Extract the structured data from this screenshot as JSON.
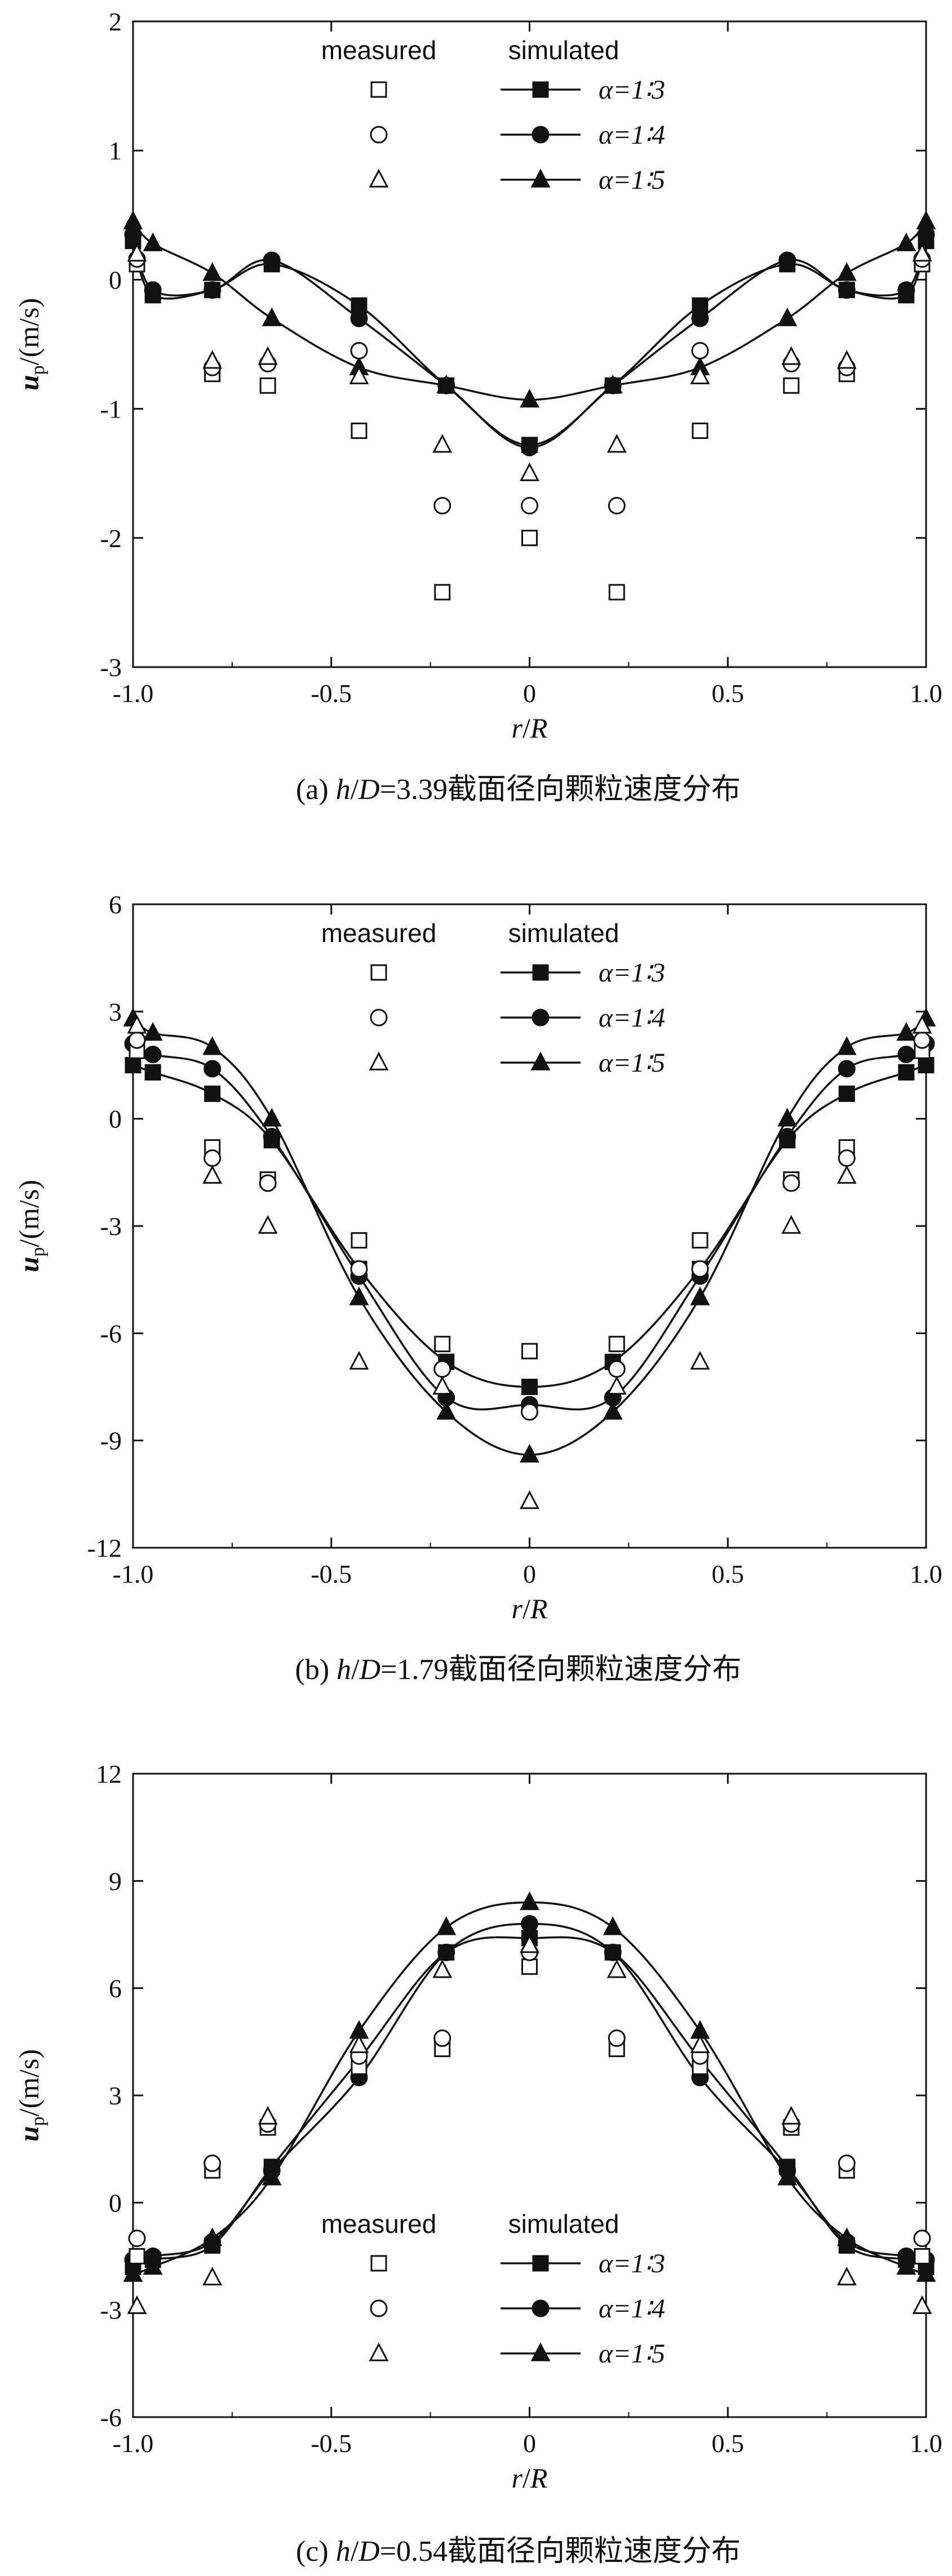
{
  "chart_data": [
    {
      "type": "line",
      "caption": {
        "prefix": "(a) ",
        "var1": "h",
        "slash": "/",
        "var2": "D",
        "value": "=3.39截面径向颗粒速度分布"
      },
      "xlabel": {
        "a": "r",
        "slash": "/",
        "b": "R"
      },
      "ylabel": {
        "main": "u",
        "sub": "p",
        "unit": "/(m/s)"
      },
      "xlim": [
        -1.0,
        1.0
      ],
      "ylim": [
        -3,
        2
      ],
      "xticks": [
        "-1.0",
        "-0.5",
        "0",
        "0.5",
        "1.0"
      ],
      "yticks": [
        "2",
        "1",
        "0",
        "-1",
        "-2",
        "-3"
      ],
      "legend": {
        "position": "top",
        "measured_label": "measured",
        "simulated_label": "simulated"
      },
      "series": [
        {
          "name": "α=1∶3",
          "legend_label": "α=1∶3",
          "measured_marker": "open-square",
          "simulated_marker": "filled-square",
          "measured": {
            "x": [
              -0.99,
              -0.8,
              -0.66,
              -0.43,
              -0.22,
              0,
              0.22,
              0.43,
              0.66,
              0.8,
              0.99
            ],
            "y": [
              0.12,
              -0.73,
              -0.82,
              -1.17,
              -2.42,
              -2.0,
              -2.42,
              -1.17,
              -0.82,
              -0.73,
              0.12
            ]
          },
          "simulated": {
            "x": [
              -1.0,
              -0.95,
              -0.8,
              -0.65,
              -0.43,
              -0.21,
              0,
              0.21,
              0.43,
              0.65,
              0.8,
              0.95,
              1.0
            ],
            "y": [
              0.3,
              -0.12,
              -0.08,
              0.12,
              -0.2,
              -0.82,
              -1.28,
              -0.82,
              -0.2,
              0.12,
              -0.08,
              -0.12,
              0.3
            ]
          }
        },
        {
          "name": "α=1∶4",
          "legend_label": "α=1∶4",
          "measured_marker": "open-circle",
          "simulated_marker": "filled-circle",
          "measured": {
            "x": [
              -0.99,
              -0.8,
              -0.66,
              -0.43,
              -0.22,
              0,
              0.22,
              0.43,
              0.66,
              0.8,
              0.99
            ],
            "y": [
              0.16,
              -0.68,
              -0.65,
              -0.55,
              -1.75,
              -1.75,
              -1.75,
              -0.55,
              -0.65,
              -0.68,
              0.16
            ]
          },
          "simulated": {
            "x": [
              -1.0,
              -0.95,
              -0.8,
              -0.65,
              -0.43,
              -0.21,
              0,
              0.21,
              0.43,
              0.65,
              0.8,
              0.95,
              1.0
            ],
            "y": [
              0.35,
              -0.08,
              -0.08,
              0.15,
              -0.3,
              -0.82,
              -1.3,
              -0.82,
              -0.3,
              0.15,
              -0.08,
              -0.08,
              0.35
            ]
          }
        },
        {
          "name": "α=1∶5",
          "legend_label": "α=1∶5",
          "measured_marker": "open-triangle",
          "simulated_marker": "filled-triangle",
          "measured": {
            "x": [
              -0.99,
              -0.8,
              -0.66,
              -0.43,
              -0.22,
              0,
              0.22,
              0.43,
              0.66,
              0.8,
              0.99
            ],
            "y": [
              0.2,
              -0.63,
              -0.6,
              -0.75,
              -1.28,
              -1.5,
              -1.28,
              -0.75,
              -0.6,
              -0.63,
              0.2
            ]
          },
          "simulated": {
            "x": [
              -1.0,
              -0.95,
              -0.8,
              -0.65,
              -0.43,
              -0.21,
              0,
              0.21,
              0.43,
              0.65,
              0.8,
              0.95,
              1.0
            ],
            "y": [
              0.45,
              0.28,
              0.05,
              -0.3,
              -0.68,
              -0.82,
              -0.93,
              -0.82,
              -0.68,
              -0.3,
              0.05,
              0.28,
              0.45
            ]
          }
        }
      ]
    },
    {
      "type": "line",
      "caption": {
        "prefix": "(b) ",
        "var1": "h",
        "slash": "/",
        "var2": "D",
        "value": "=1.79截面径向颗粒速度分布"
      },
      "xlabel": {
        "a": "r",
        "slash": "/",
        "b": "R"
      },
      "ylabel": {
        "main": "u",
        "sub": "p",
        "unit": "/(m/s)"
      },
      "xlim": [
        -1.0,
        1.0
      ],
      "ylim": [
        -12,
        6
      ],
      "xticks": [
        "-1.0",
        "-0.5",
        "0",
        "0.5",
        "1.0"
      ],
      "yticks": [
        "6",
        "3",
        "0",
        "-3",
        "-6",
        "-9",
        "-12"
      ],
      "legend": {
        "position": "top",
        "measured_label": "measured",
        "simulated_label": "simulated"
      },
      "series": [
        {
          "name": "α=1∶3",
          "legend_label": "α=1∶3",
          "measured_marker": "open-square",
          "simulated_marker": "filled-square",
          "measured": {
            "x": [
              -0.99,
              -0.8,
              -0.66,
              -0.43,
              -0.22,
              0,
              0.22,
              0.43,
              0.66,
              0.8,
              0.99
            ],
            "y": [
              1.9,
              -0.8,
              -1.7,
              -3.4,
              -6.3,
              -6.5,
              -6.3,
              -3.4,
              -1.7,
              -0.8,
              1.9
            ]
          },
          "simulated": {
            "x": [
              -1.0,
              -0.95,
              -0.8,
              -0.65,
              -0.43,
              -0.21,
              0,
              0.21,
              0.43,
              0.65,
              0.8,
              0.95,
              1.0
            ],
            "y": [
              1.5,
              1.3,
              0.7,
              -0.6,
              -4.2,
              -6.8,
              -7.5,
              -6.8,
              -4.2,
              -0.6,
              0.7,
              1.3,
              1.5
            ]
          }
        },
        {
          "name": "α=1∶4",
          "legend_label": "α=1∶4",
          "measured_marker": "open-circle",
          "simulated_marker": "filled-circle",
          "measured": {
            "x": [
              -0.99,
              -0.8,
              -0.66,
              -0.43,
              -0.22,
              0,
              0.22,
              0.43,
              0.66,
              0.8,
              0.99
            ],
            "y": [
              2.2,
              -1.1,
              -1.8,
              -4.2,
              -7.0,
              -8.2,
              -7.0,
              -4.2,
              -1.8,
              -1.1,
              2.2
            ]
          },
          "simulated": {
            "x": [
              -1.0,
              -0.95,
              -0.8,
              -0.65,
              -0.43,
              -0.21,
              0,
              0.21,
              0.43,
              0.65,
              0.8,
              0.95,
              1.0
            ],
            "y": [
              2.1,
              1.8,
              1.4,
              -0.5,
              -4.4,
              -7.8,
              -8.0,
              -7.8,
              -4.4,
              -0.5,
              1.4,
              1.8,
              2.1
            ]
          }
        },
        {
          "name": "α=1∶5",
          "legend_label": "α=1∶5",
          "measured_marker": "open-triangle",
          "simulated_marker": "filled-triangle",
          "measured": {
            "x": [
              -0.99,
              -0.8,
              -0.66,
              -0.43,
              -0.22,
              0,
              0.22,
              0.43,
              0.66,
              0.8,
              0.99
            ],
            "y": [
              2.6,
              -1.6,
              -3.0,
              -6.8,
              -7.5,
              -10.7,
              -7.5,
              -6.8,
              -3.0,
              -1.6,
              2.6
            ]
          },
          "simulated": {
            "x": [
              -1.0,
              -0.95,
              -0.8,
              -0.65,
              -0.43,
              -0.21,
              0,
              0.21,
              0.43,
              0.65,
              0.8,
              0.95,
              1.0
            ],
            "y": [
              2.8,
              2.4,
              2.0,
              0.0,
              -5.0,
              -8.2,
              -9.4,
              -8.2,
              -5.0,
              0.0,
              2.0,
              2.4,
              2.8
            ]
          }
        }
      ]
    },
    {
      "type": "line",
      "caption": {
        "prefix": "(c) ",
        "var1": "h",
        "slash": "/",
        "var2": "D",
        "value": "=0.54截面径向颗粒速度分布"
      },
      "xlabel": {
        "a": "r",
        "slash": "/",
        "b": "R"
      },
      "ylabel": {
        "main": "u",
        "sub": "p",
        "unit": "/(m/s)"
      },
      "xlim": [
        -1.0,
        1.0
      ],
      "ylim": [
        -6,
        12
      ],
      "xticks": [
        "-1.0",
        "-0.5",
        "0",
        "0.5",
        "1.0"
      ],
      "yticks": [
        "12",
        "9",
        "6",
        "3",
        "0",
        "-3",
        "-6"
      ],
      "legend": {
        "position": "bottom",
        "measured_label": "measured",
        "simulated_label": "simulated"
      },
      "series": [
        {
          "name": "α=1∶3",
          "legend_label": "α=1∶3",
          "measured_marker": "open-square",
          "simulated_marker": "filled-square",
          "measured": {
            "x": [
              -0.99,
              -0.8,
              -0.66,
              -0.43,
              -0.22,
              0,
              0.22,
              0.43,
              0.66,
              0.8,
              0.99
            ],
            "y": [
              -1.5,
              0.9,
              2.1,
              3.8,
              4.3,
              6.6,
              4.3,
              3.8,
              2.1,
              0.9,
              -1.5
            ]
          },
          "simulated": {
            "x": [
              -1.0,
              -0.95,
              -0.8,
              -0.65,
              -0.43,
              -0.21,
              0,
              0.21,
              0.43,
              0.65,
              0.8,
              0.95,
              1.0
            ],
            "y": [
              -1.8,
              -1.6,
              -1.2,
              1.0,
              4.0,
              7.0,
              7.4,
              7.0,
              4.0,
              1.0,
              -1.2,
              -1.6,
              -1.8
            ]
          }
        },
        {
          "name": "α=1∶4",
          "legend_label": "α=1∶4",
          "measured_marker": "open-circle",
          "simulated_marker": "filled-circle",
          "measured": {
            "x": [
              -0.99,
              -0.8,
              -0.66,
              -0.43,
              -0.22,
              0,
              0.22,
              0.43,
              0.66,
              0.8,
              0.99
            ],
            "y": [
              -1.0,
              1.1,
              2.2,
              4.1,
              4.6,
              7.0,
              4.6,
              4.1,
              2.2,
              1.1,
              -1.0
            ]
          },
          "simulated": {
            "x": [
              -1.0,
              -0.95,
              -0.8,
              -0.65,
              -0.43,
              -0.21,
              0,
              0.21,
              0.43,
              0.65,
              0.8,
              0.95,
              1.0
            ],
            "y": [
              -1.6,
              -1.5,
              -1.1,
              0.9,
              3.5,
              7.0,
              7.8,
              7.0,
              3.5,
              0.9,
              -1.1,
              -1.5,
              -1.6
            ]
          }
        },
        {
          "name": "α=1∶5",
          "legend_label": "α=1∶5",
          "measured_marker": "open-triangle",
          "simulated_marker": "filled-triangle",
          "measured": {
            "x": [
              -0.99,
              -0.8,
              -0.66,
              -0.43,
              -0.22,
              0,
              0.22,
              0.43,
              0.66,
              0.8,
              0.99
            ],
            "y": [
              -2.9,
              -2.1,
              2.4,
              4.4,
              6.5,
              7.2,
              6.5,
              4.4,
              2.4,
              -2.1,
              -2.9
            ]
          },
          "simulated": {
            "x": [
              -1.0,
              -0.95,
              -0.8,
              -0.65,
              -0.43,
              -0.21,
              0,
              0.21,
              0.43,
              0.65,
              0.8,
              0.95,
              1.0
            ],
            "y": [
              -2.0,
              -1.8,
              -1.0,
              0.7,
              4.8,
              7.7,
              8.4,
              7.7,
              4.8,
              0.7,
              -1.0,
              -1.8,
              -2.0
            ]
          }
        }
      ]
    }
  ]
}
